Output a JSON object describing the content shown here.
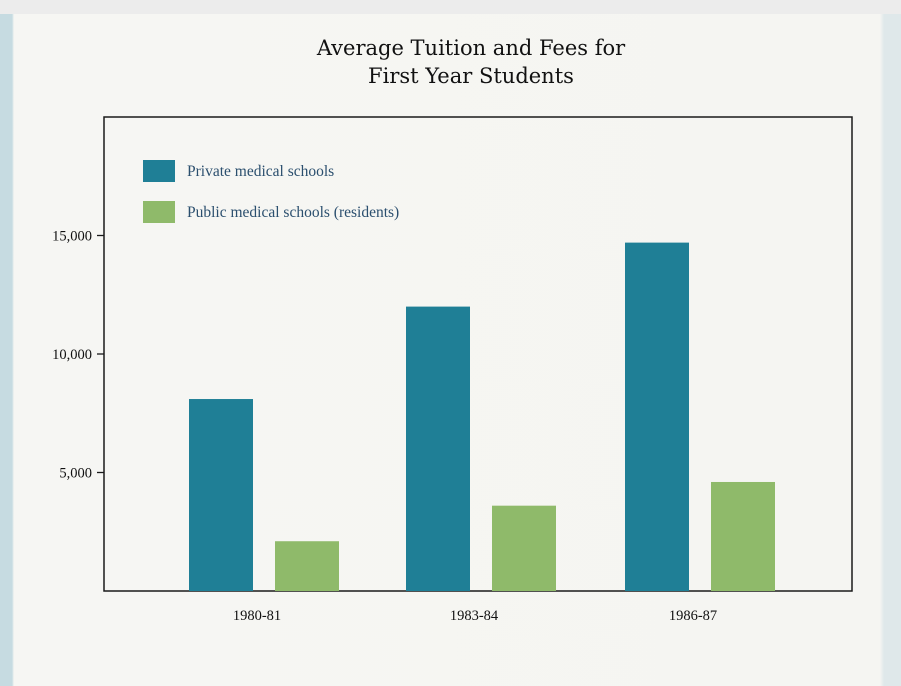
{
  "chart_data": {
    "type": "bar",
    "title_lines": [
      "Average Tuition and Fees for",
      "First Year Students"
    ],
    "categories": [
      "1980-81",
      "1983-84",
      "1986-87"
    ],
    "series": [
      {
        "name": "Private medical schools",
        "values": [
          8100,
          12000,
          14700
        ],
        "color": "#1f7f96"
      },
      {
        "name": "Public medical schools (residents)",
        "values": [
          2100,
          3600,
          4600
        ],
        "color": "#8fba6a"
      }
    ],
    "yticks": [
      5000,
      10000,
      15000
    ],
    "ytick_labels": [
      "5,000",
      "10,000",
      "15,000"
    ],
    "ylim": [
      0,
      20000
    ],
    "grid": false,
    "legend_position": "top-left"
  }
}
